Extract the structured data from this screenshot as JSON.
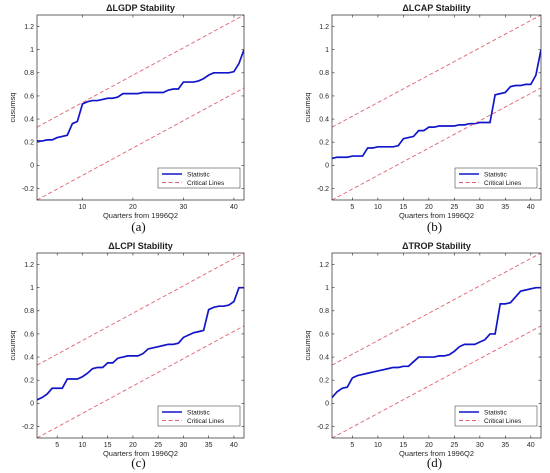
{
  "colors": {
    "statistic": "#1016c8",
    "critical": "#e0626e",
    "axis": "#262626"
  },
  "chart_data": [
    {
      "type": "line",
      "title": "ΔLGDP Stability",
      "panel_label": "(a)",
      "xlabel": "Quarters from 1996Q2",
      "ylabel": "cusumsq",
      "xlim": [
        1,
        42
      ],
      "ylim": [
        -0.3,
        1.3
      ],
      "xticks": [
        10,
        20,
        30,
        40
      ],
      "yticks": [
        -0.2,
        0,
        0.2,
        0.4,
        0.6,
        0.8,
        1,
        1.2
      ],
      "xtick_labels": [
        "10",
        "20",
        "30",
        "40"
      ],
      "ytick_labels": [
        "-0.2",
        "0",
        "0.2",
        "0.4",
        "0.6",
        "0.8",
        "1",
        "1.2"
      ],
      "legend": {
        "location": "lower-right",
        "entries": [
          "Statistic",
          "Critical Lines"
        ]
      },
      "series": [
        {
          "name": "Statistic",
          "style": "solid",
          "x": [
            1,
            2,
            3,
            4,
            5,
            6,
            7,
            8,
            9,
            10,
            11,
            12,
            13,
            14,
            15,
            16,
            17,
            18,
            19,
            20,
            21,
            22,
            23,
            24,
            25,
            26,
            27,
            28,
            29,
            30,
            31,
            32,
            33,
            34,
            35,
            36,
            37,
            38,
            39,
            40,
            41,
            42
          ],
          "y": [
            0.21,
            0.21,
            0.22,
            0.22,
            0.24,
            0.25,
            0.26,
            0.36,
            0.38,
            0.53,
            0.55,
            0.56,
            0.56,
            0.57,
            0.58,
            0.58,
            0.59,
            0.62,
            0.62,
            0.62,
            0.62,
            0.63,
            0.63,
            0.63,
            0.63,
            0.63,
            0.65,
            0.66,
            0.66,
            0.72,
            0.72,
            0.72,
            0.73,
            0.75,
            0.78,
            0.8,
            0.8,
            0.8,
            0.8,
            0.81,
            0.88,
            1.0
          ]
        },
        {
          "name": "Critical Lines",
          "style": "dashed",
          "x": [
            1,
            42
          ],
          "y": [
            0.33,
            1.3
          ]
        },
        {
          "name": "Critical Lines",
          "style": "dashed",
          "x": [
            1,
            42
          ],
          "y": [
            -0.3,
            0.67
          ]
        }
      ]
    },
    {
      "type": "line",
      "title": "ΔLCAP Stability",
      "panel_label": "(b)",
      "xlabel": "Quarters from 1996Q2",
      "ylabel": "cusumsq",
      "xlim": [
        1,
        42
      ],
      "ylim": [
        -0.3,
        1.3
      ],
      "xticks": [
        5,
        10,
        15,
        20,
        25,
        30,
        35,
        40
      ],
      "yticks": [
        -0.2,
        0,
        0.2,
        0.4,
        0.6,
        0.8,
        1,
        1.2
      ],
      "xtick_labels": [
        "5",
        "10",
        "15",
        "20",
        "25",
        "30",
        "35",
        "40"
      ],
      "ytick_labels": [
        "-0.2",
        "0",
        "0.2",
        "0.4",
        "0.6",
        "0.8",
        "1",
        "1.2"
      ],
      "legend": {
        "location": "lower-right",
        "entries": [
          "Statistic",
          "Critical Lines"
        ]
      },
      "series": [
        {
          "name": "Statistic",
          "style": "solid",
          "x": [
            1,
            2,
            3,
            4,
            5,
            6,
            7,
            8,
            9,
            10,
            11,
            12,
            13,
            14,
            15,
            16,
            17,
            18,
            19,
            20,
            21,
            22,
            23,
            24,
            25,
            26,
            27,
            28,
            29,
            30,
            31,
            32,
            33,
            34,
            35,
            36,
            37,
            38,
            39,
            40,
            41,
            42
          ],
          "y": [
            0.06,
            0.07,
            0.07,
            0.07,
            0.08,
            0.08,
            0.08,
            0.15,
            0.15,
            0.16,
            0.16,
            0.16,
            0.16,
            0.17,
            0.23,
            0.24,
            0.25,
            0.3,
            0.3,
            0.33,
            0.33,
            0.34,
            0.34,
            0.34,
            0.34,
            0.35,
            0.35,
            0.36,
            0.36,
            0.37,
            0.37,
            0.37,
            0.61,
            0.62,
            0.63,
            0.68,
            0.69,
            0.69,
            0.7,
            0.7,
            0.78,
            1.0
          ]
        },
        {
          "name": "Critical Lines",
          "style": "dashed",
          "x": [
            1,
            42
          ],
          "y": [
            0.33,
            1.3
          ]
        },
        {
          "name": "Critical Lines",
          "style": "dashed",
          "x": [
            1,
            42
          ],
          "y": [
            -0.3,
            0.67
          ]
        }
      ]
    },
    {
      "type": "line",
      "title": "ΔLCPI Stability",
      "panel_label": "(c)",
      "xlabel": "Quarters from 1996Q2",
      "ylabel": "cusumsq",
      "xlim": [
        1,
        42
      ],
      "ylim": [
        -0.3,
        1.3
      ],
      "xticks": [
        5,
        10,
        15,
        20,
        25,
        30,
        35,
        40
      ],
      "yticks": [
        -0.2,
        0,
        0.2,
        0.4,
        0.6,
        0.8,
        1,
        1.2
      ],
      "xtick_labels": [
        "5",
        "10",
        "15",
        "20",
        "25",
        "30",
        "35",
        "40"
      ],
      "ytick_labels": [
        "-0.2",
        "0",
        "0.2",
        "0.4",
        "0.6",
        "0.8",
        "1",
        "1.2"
      ],
      "legend": {
        "location": "lower-right",
        "entries": [
          "Statistic",
          "Critical Lines"
        ]
      },
      "series": [
        {
          "name": "Statistic",
          "style": "solid",
          "x": [
            1,
            2,
            3,
            4,
            5,
            6,
            7,
            8,
            9,
            10,
            11,
            12,
            13,
            14,
            15,
            16,
            17,
            18,
            19,
            20,
            21,
            22,
            23,
            24,
            25,
            26,
            27,
            28,
            29,
            30,
            31,
            32,
            33,
            34,
            35,
            36,
            37,
            38,
            39,
            40,
            41,
            42
          ],
          "y": [
            0.03,
            0.05,
            0.08,
            0.13,
            0.13,
            0.13,
            0.21,
            0.21,
            0.21,
            0.23,
            0.26,
            0.3,
            0.31,
            0.31,
            0.35,
            0.35,
            0.39,
            0.4,
            0.41,
            0.41,
            0.41,
            0.43,
            0.47,
            0.48,
            0.49,
            0.5,
            0.51,
            0.51,
            0.52,
            0.57,
            0.59,
            0.61,
            0.62,
            0.63,
            0.81,
            0.83,
            0.84,
            0.84,
            0.85,
            0.88,
            1.0,
            1.0
          ]
        },
        {
          "name": "Critical Lines",
          "style": "dashed",
          "x": [
            1,
            42
          ],
          "y": [
            0.33,
            1.3
          ]
        },
        {
          "name": "Critical Lines",
          "style": "dashed",
          "x": [
            1,
            42
          ],
          "y": [
            -0.3,
            0.67
          ]
        }
      ]
    },
    {
      "type": "line",
      "title": "ΔTROP Stability",
      "panel_label": "(d)",
      "xlabel": "Quarters from 1996Q2",
      "ylabel": "cusumsq",
      "xlim": [
        1,
        42
      ],
      "ylim": [
        -0.3,
        1.3
      ],
      "xticks": [
        5,
        10,
        15,
        20,
        25,
        30,
        35,
        40
      ],
      "yticks": [
        -0.2,
        0,
        0.2,
        0.4,
        0.6,
        0.8,
        1,
        1.2
      ],
      "xtick_labels": [
        "5",
        "10",
        "15",
        "20",
        "25",
        "30",
        "35",
        "40"
      ],
      "ytick_labels": [
        "-0.2",
        "0",
        "0.2",
        "0.4",
        "0.6",
        "0.8",
        "1",
        "1.2"
      ],
      "legend": {
        "location": "lower-right",
        "entries": [
          "Statistic",
          "Critical Lines"
        ]
      },
      "series": [
        {
          "name": "Statistic",
          "style": "solid",
          "x": [
            1,
            2,
            3,
            4,
            5,
            6,
            7,
            8,
            9,
            10,
            11,
            12,
            13,
            14,
            15,
            16,
            17,
            18,
            19,
            20,
            21,
            22,
            23,
            24,
            25,
            26,
            27,
            28,
            29,
            30,
            31,
            32,
            33,
            34,
            35,
            36,
            37,
            38,
            39,
            40,
            41,
            42
          ],
          "y": [
            0.05,
            0.1,
            0.13,
            0.14,
            0.22,
            0.24,
            0.25,
            0.26,
            0.27,
            0.28,
            0.29,
            0.3,
            0.31,
            0.31,
            0.32,
            0.32,
            0.36,
            0.4,
            0.4,
            0.4,
            0.4,
            0.41,
            0.41,
            0.42,
            0.45,
            0.49,
            0.51,
            0.51,
            0.51,
            0.53,
            0.55,
            0.6,
            0.6,
            0.86,
            0.86,
            0.87,
            0.92,
            0.97,
            0.98,
            0.99,
            1.0,
            1.0
          ]
        },
        {
          "name": "Critical Lines",
          "style": "dashed",
          "x": [
            1,
            42
          ],
          "y": [
            0.33,
            1.3
          ]
        },
        {
          "name": "Critical Lines",
          "style": "dashed",
          "x": [
            1,
            42
          ],
          "y": [
            -0.3,
            0.67
          ]
        }
      ]
    }
  ]
}
